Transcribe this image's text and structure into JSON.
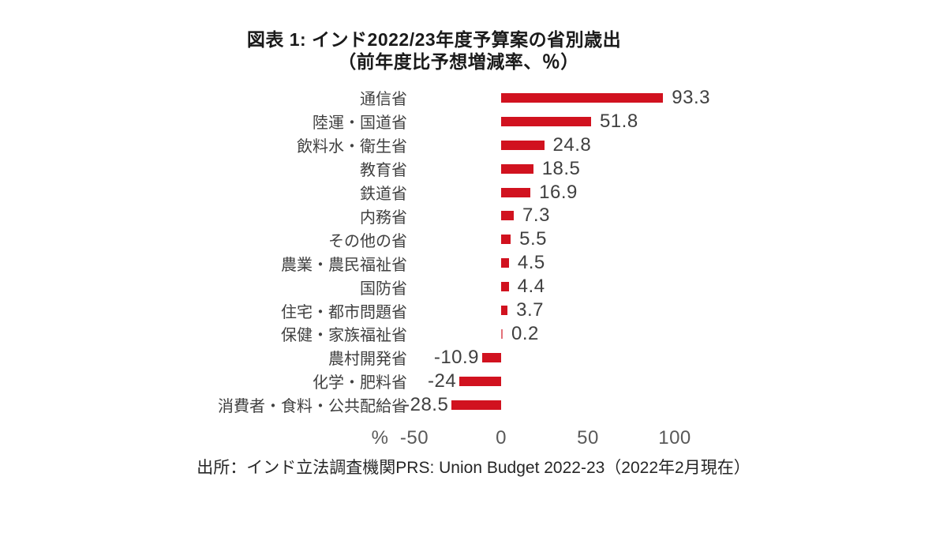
{
  "title": {
    "line1": "図表 1: インド2022/23年度予算案の省別歳出",
    "line2": "（前年度比予想増減率、％）"
  },
  "source": "出所：インド立法調査機関PRS: Union Budget 2022-23（2022年2月現在）",
  "chart_data": {
    "type": "bar",
    "orientation": "horizontal",
    "title": "図表 1: インド2022/23年度予算案の省別歳出（前年度比予想増減率、％）",
    "unit_label": "%",
    "categories": [
      "通信省",
      "陸運・国道省",
      "飲料水・衛生省",
      "教育省",
      "鉄道省",
      "内務省",
      "その他の省",
      "農業・農民福祉省",
      "国防省",
      "住宅・都市問題省",
      "保健・家族福祉省",
      "農村開発省",
      "化学・肥料省",
      "消費者・食料・公共配給省"
    ],
    "values": [
      93.3,
      51.8,
      24.8,
      18.5,
      16.9,
      7.3,
      5.5,
      4.5,
      4.4,
      3.7,
      0.2,
      -10.9,
      -24,
      -28.5
    ],
    "value_labels": [
      "93.3",
      "51.8",
      "24.8",
      "18.5",
      "16.9",
      "7.3",
      "5.5",
      "4.5",
      "4.4",
      "3.7",
      "0.2",
      "-10.9",
      "-24",
      "-28.5"
    ],
    "x_ticks": [
      -50,
      0,
      50,
      100
    ],
    "x_tick_labels": [
      "-50",
      "0",
      "50",
      "100"
    ],
    "xlim": [
      -50,
      115
    ],
    "grid": false,
    "legend": "none",
    "bar_color": "#D1121F"
  },
  "colors": {
    "background": "#FFFFFF",
    "bar": "#D1121F",
    "title_text": "#1A1A1A",
    "category_text": "#404040",
    "value_text": "#404040",
    "tick_text": "#595959",
    "source_text": "#262626"
  }
}
